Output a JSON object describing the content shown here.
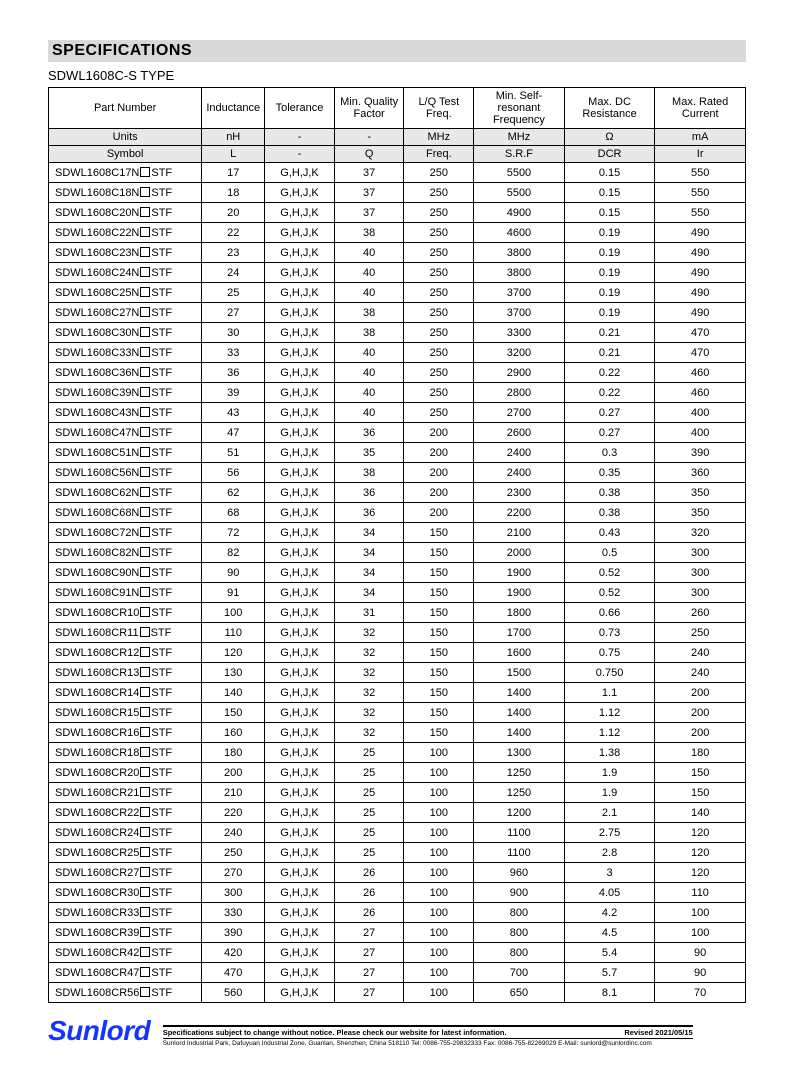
{
  "section_title": "SPECIFICATIONS",
  "subtitle": "SDWL1608C-S TYPE",
  "headers": {
    "c1": "Part Number",
    "c2": "Inductance",
    "c3": "Tolerance",
    "c4": "Min. Quality Factor",
    "c5": "L/Q Test Freq.",
    "c6": "Min. Self-resonant Frequency",
    "c7": "Max. DC Resistance",
    "c8": "Max. Rated Current"
  },
  "units": {
    "label": "Units",
    "c2": "nH",
    "c3": "-",
    "c4": "-",
    "c5": "MHz",
    "c6": "MHz",
    "c7": "Ω",
    "c8": "mA"
  },
  "symbols": {
    "label": "Symbol",
    "c2": "L",
    "c3": "-",
    "c4": "Q",
    "c5": "Freq.",
    "c6": "S.R.F",
    "c7": "DCR",
    "c8": "Ir"
  },
  "part_prefix": "SDWL1608C",
  "part_suffix": "STF",
  "rows": [
    {
      "code": "17N",
      "l": "17",
      "tol": "G,H,J,K",
      "q": "37",
      "f": "250",
      "srf": "5500",
      "dcr": "0.15",
      "ir": "550"
    },
    {
      "code": "18N",
      "l": "18",
      "tol": "G,H,J,K",
      "q": "37",
      "f": "250",
      "srf": "5500",
      "dcr": "0.15",
      "ir": "550"
    },
    {
      "code": "20N",
      "l": "20",
      "tol": "G,H,J,K",
      "q": "37",
      "f": "250",
      "srf": "4900",
      "dcr": "0.15",
      "ir": "550"
    },
    {
      "code": "22N",
      "l": "22",
      "tol": "G,H,J,K",
      "q": "38",
      "f": "250",
      "srf": "4600",
      "dcr": "0.19",
      "ir": "490"
    },
    {
      "code": "23N",
      "l": "23",
      "tol": "G,H,J,K",
      "q": "40",
      "f": "250",
      "srf": "3800",
      "dcr": "0.19",
      "ir": "490"
    },
    {
      "code": "24N",
      "l": "24",
      "tol": "G,H,J,K",
      "q": "40",
      "f": "250",
      "srf": "3800",
      "dcr": "0.19",
      "ir": "490"
    },
    {
      "code": "25N",
      "l": "25",
      "tol": "G,H,J,K",
      "q": "40",
      "f": "250",
      "srf": "3700",
      "dcr": "0.19",
      "ir": "490"
    },
    {
      "code": "27N",
      "l": "27",
      "tol": "G,H,J,K",
      "q": "38",
      "f": "250",
      "srf": "3700",
      "dcr": "0.19",
      "ir": "490"
    },
    {
      "code": "30N",
      "l": "30",
      "tol": "G,H,J,K",
      "q": "38",
      "f": "250",
      "srf": "3300",
      "dcr": "0.21",
      "ir": "470"
    },
    {
      "code": "33N",
      "l": "33",
      "tol": "G,H,J,K",
      "q": "40",
      "f": "250",
      "srf": "3200",
      "dcr": "0.21",
      "ir": "470"
    },
    {
      "code": "36N",
      "l": "36",
      "tol": "G,H,J,K",
      "q": "40",
      "f": "250",
      "srf": "2900",
      "dcr": "0.22",
      "ir": "460"
    },
    {
      "code": "39N",
      "l": "39",
      "tol": "G,H,J,K",
      "q": "40",
      "f": "250",
      "srf": "2800",
      "dcr": "0.22",
      "ir": "460"
    },
    {
      "code": "43N",
      "l": "43",
      "tol": "G,H,J,K",
      "q": "40",
      "f": "250",
      "srf": "2700",
      "dcr": "0.27",
      "ir": "400"
    },
    {
      "code": "47N",
      "l": "47",
      "tol": "G,H,J,K",
      "q": "36",
      "f": "200",
      "srf": "2600",
      "dcr": "0.27",
      "ir": "400"
    },
    {
      "code": "51N",
      "l": "51",
      "tol": "G,H,J,K",
      "q": "35",
      "f": "200",
      "srf": "2400",
      "dcr": "0.3",
      "ir": "390"
    },
    {
      "code": "56N",
      "l": "56",
      "tol": "G,H,J,K",
      "q": "38",
      "f": "200",
      "srf": "2400",
      "dcr": "0.35",
      "ir": "360"
    },
    {
      "code": "62N",
      "l": "62",
      "tol": "G,H,J,K",
      "q": "36",
      "f": "200",
      "srf": "2300",
      "dcr": "0.38",
      "ir": "350"
    },
    {
      "code": "68N",
      "l": "68",
      "tol": "G,H,J,K",
      "q": "36",
      "f": "200",
      "srf": "2200",
      "dcr": "0.38",
      "ir": "350"
    },
    {
      "code": "72N",
      "l": "72",
      "tol": "G,H,J,K",
      "q": "34",
      "f": "150",
      "srf": "2100",
      "dcr": "0.43",
      "ir": "320"
    },
    {
      "code": "82N",
      "l": "82",
      "tol": "G,H,J,K",
      "q": "34",
      "f": "150",
      "srf": "2000",
      "dcr": "0.5",
      "ir": "300"
    },
    {
      "code": "90N",
      "l": "90",
      "tol": "G,H,J,K",
      "q": "34",
      "f": "150",
      "srf": "1900",
      "dcr": "0.52",
      "ir": "300"
    },
    {
      "code": "91N",
      "l": "91",
      "tol": "G,H,J,K",
      "q": "34",
      "f": "150",
      "srf": "1900",
      "dcr": "0.52",
      "ir": "300"
    },
    {
      "code": "R10",
      "l": "100",
      "tol": "G,H,J,K",
      "q": "31",
      "f": "150",
      "srf": "1800",
      "dcr": "0.66",
      "ir": "260"
    },
    {
      "code": "R11",
      "l": "110",
      "tol": "G,H,J,K",
      "q": "32",
      "f": "150",
      "srf": "1700",
      "dcr": "0.73",
      "ir": "250"
    },
    {
      "code": "R12",
      "l": "120",
      "tol": "G,H,J,K",
      "q": "32",
      "f": "150",
      "srf": "1600",
      "dcr": "0.75",
      "ir": "240"
    },
    {
      "code": "R13",
      "l": "130",
      "tol": "G,H,J,K",
      "q": "32",
      "f": "150",
      "srf": "1500",
      "dcr": "0.750",
      "ir": "240"
    },
    {
      "code": "R14",
      "l": "140",
      "tol": "G,H,J,K",
      "q": "32",
      "f": "150",
      "srf": "1400",
      "dcr": "1.1",
      "ir": "200"
    },
    {
      "code": "R15",
      "l": "150",
      "tol": "G,H,J,K",
      "q": "32",
      "f": "150",
      "srf": "1400",
      "dcr": "1.12",
      "ir": "200"
    },
    {
      "code": "R16",
      "l": "160",
      "tol": "G,H,J,K",
      "q": "32",
      "f": "150",
      "srf": "1400",
      "dcr": "1.12",
      "ir": "200"
    },
    {
      "code": "R18",
      "l": "180",
      "tol": "G,H,J,K",
      "q": "25",
      "f": "100",
      "srf": "1300",
      "dcr": "1.38",
      "ir": "180"
    },
    {
      "code": "R20",
      "l": "200",
      "tol": "G,H,J,K",
      "q": "25",
      "f": "100",
      "srf": "1250",
      "dcr": "1.9",
      "ir": "150"
    },
    {
      "code": "R21",
      "l": "210",
      "tol": "G,H,J,K",
      "q": "25",
      "f": "100",
      "srf": "1250",
      "dcr": "1.9",
      "ir": "150"
    },
    {
      "code": "R22",
      "l": "220",
      "tol": "G,H,J,K",
      "q": "25",
      "f": "100",
      "srf": "1200",
      "dcr": "2.1",
      "ir": "140"
    },
    {
      "code": "R24",
      "l": "240",
      "tol": "G,H,J,K",
      "q": "25",
      "f": "100",
      "srf": "1100",
      "dcr": "2.75",
      "ir": "120"
    },
    {
      "code": "R25",
      "l": "250",
      "tol": "G,H,J,K",
      "q": "25",
      "f": "100",
      "srf": "1100",
      "dcr": "2.8",
      "ir": "120"
    },
    {
      "code": "R27",
      "l": "270",
      "tol": "G,H,J,K",
      "q": "26",
      "f": "100",
      "srf": "960",
      "dcr": "3",
      "ir": "120"
    },
    {
      "code": "R30",
      "l": "300",
      "tol": "G,H,J,K",
      "q": "26",
      "f": "100",
      "srf": "900",
      "dcr": "4.05",
      "ir": "110"
    },
    {
      "code": "R33",
      "l": "330",
      "tol": "G,H,J,K",
      "q": "26",
      "f": "100",
      "srf": "800",
      "dcr": "4.2",
      "ir": "100"
    },
    {
      "code": "R39",
      "l": "390",
      "tol": "G,H,J,K",
      "q": "27",
      "f": "100",
      "srf": "800",
      "dcr": "4.5",
      "ir": "100"
    },
    {
      "code": "R42",
      "l": "420",
      "tol": "G,H,J,K",
      "q": "27",
      "f": "100",
      "srf": "800",
      "dcr": "5.4",
      "ir": "90"
    },
    {
      "code": "R47",
      "l": "470",
      "tol": "G,H,J,K",
      "q": "27",
      "f": "100",
      "srf": "700",
      "dcr": "5.7",
      "ir": "90"
    },
    {
      "code": "R56",
      "l": "560",
      "tol": "G,H,J,K",
      "q": "27",
      "f": "100",
      "srf": "650",
      "dcr": "8.1",
      "ir": "70"
    }
  ],
  "col_widths": [
    "22%",
    "9%",
    "10%",
    "10%",
    "10%",
    "13%",
    "13%",
    "13%"
  ],
  "colors": {
    "header_bg": "#e8e8e8",
    "title_bg": "#d9d9d9",
    "border": "#000000",
    "logo": "#1434ff"
  },
  "footer": {
    "logo": "Sunlord",
    "notice": "Specifications subject to change without notice. Please check our website for latest information.",
    "revised": "Revised 2021/05/15",
    "address": "Sunlord Industrial Park, Dafuyuan Industrial Zone, Guanlan, Shenzhen, China 518110 Tel: 0086-755-29832333 Fax: 0086-755-82269029 E-Mail: sunlord@sunlordinc.com"
  }
}
